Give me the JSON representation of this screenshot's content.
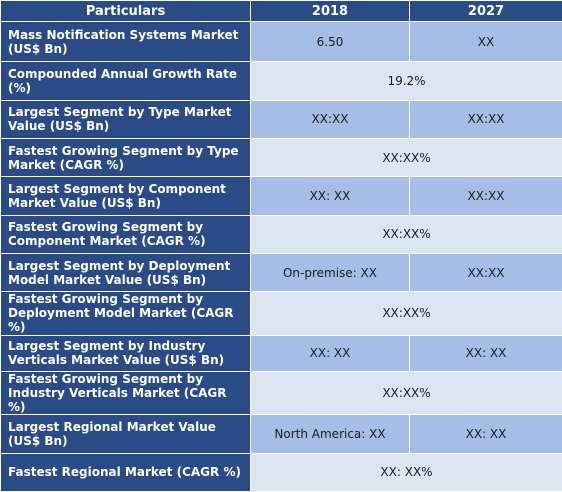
{
  "header": {
    "col0": "Particulars",
    "col1": "2018",
    "col2": "2027"
  },
  "colors": {
    "header_bg": "#2b4b87",
    "row_blue": "#a6bde6",
    "row_light": "#dbe5f2",
    "text": "#1a1a1a"
  },
  "rows": [
    {
      "label": "Mass Notification Systems Market (US$ Bn)",
      "v2018": "6.50",
      "v2027": "XX"
    },
    {
      "label": "Compounded Annual Growth Rate (%)",
      "merged": "19.2%"
    },
    {
      "label": "Largest Segment by Type Market Value (US$ Bn)",
      "v2018": "XX:XX",
      "v2027": "XX:XX"
    },
    {
      "label": "Fastest Growing Segment by Type Market (CAGR %)",
      "merged": "XX:XX%"
    },
    {
      "label": "Largest Segment by Component Market Value (US$ Bn)",
      "v2018": "XX: XX",
      "v2027": "XX:XX"
    },
    {
      "label": "Fastest Growing Segment by Component Market (CAGR %)",
      "merged": "XX:XX%"
    },
    {
      "label": "Largest Segment by Deployment Model Market Value (US$ Bn)",
      "v2018": "On-premise: XX",
      "v2027": "XX:XX"
    },
    {
      "label": "Fastest Growing Segment by Deployment Model Market (CAGR %)",
      "merged": "XX:XX%"
    },
    {
      "label": "Largest Segment by Industry Verticals Market Value (US$ Bn)",
      "v2018": "XX: XX",
      "v2027": "XX: XX"
    },
    {
      "label": "Fastest Growing Segment by Industry Verticals Market (CAGR %)",
      "merged": "XX:XX%"
    },
    {
      "label": "Largest Regional Market Value (US$ Bn)",
      "v2018": "North America: XX",
      "v2027": "XX: XX"
    },
    {
      "label": "Fastest Regional Market (CAGR %)",
      "merged": "XX: XX%"
    }
  ]
}
